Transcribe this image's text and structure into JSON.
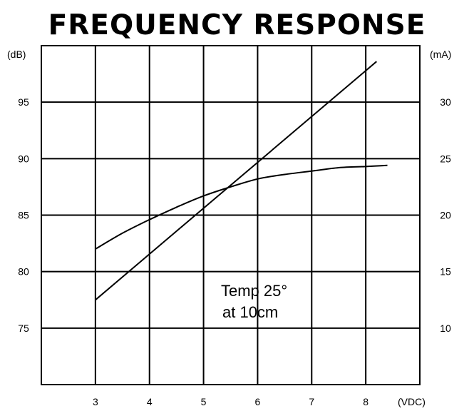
{
  "chart_data": {
    "type": "line",
    "title": "FREQUENCY RESPONSE",
    "xlabel": "(VDC)",
    "ylabel_left": "(dB)",
    "ylabel_right": "(mA)",
    "x_ticks": [
      3,
      4,
      5,
      6,
      7,
      8
    ],
    "y_left_ticks": [
      75,
      80,
      85,
      90,
      95
    ],
    "y_right_ticks": [
      10,
      15,
      20,
      25,
      30
    ],
    "xlim": [
      2,
      9
    ],
    "ylim_left": [
      70,
      100
    ],
    "ylim_right": [
      5,
      35
    ],
    "grid": true,
    "series": [
      {
        "axis": "left",
        "x": [
          3.0,
          3.5,
          4.0,
          4.5,
          5.0,
          5.5,
          6.0,
          6.5,
          7.0,
          7.5,
          8.0,
          8.4
        ],
        "values": [
          82.0,
          83.4,
          84.6,
          85.7,
          86.7,
          87.5,
          88.2,
          88.6,
          88.9,
          89.2,
          89.3,
          89.4
        ]
      },
      {
        "axis": "left",
        "x": [
          3.0,
          8.2
        ],
        "values": [
          77.5,
          98.6
        ]
      }
    ],
    "annotation": {
      "line1": "Temp 25°",
      "line2": "at 10cm"
    }
  }
}
